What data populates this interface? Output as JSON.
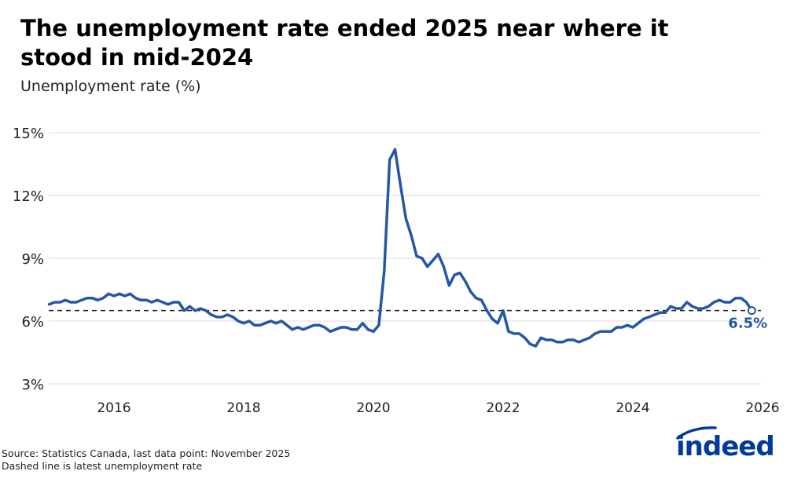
{
  "title": "The unemployment rate ended 2025 near where it stood in mid-2024",
  "subtitle": "Unemployment rate (%)",
  "source": "Source: Statistics Canada, last data point: November 2025",
  "note": "Dashed line is latest unemployment rate",
  "logo_text": "indeed",
  "colors": {
    "line": "#2557a7",
    "grid": "#dddddd",
    "reference": "#222222",
    "logo": "#003a9b"
  },
  "chart_data": {
    "type": "line",
    "title": "The unemployment rate ended 2025 near where it stood in mid-2024",
    "ylabel": "Unemployment rate (%)",
    "xlabel": "",
    "start": "2015-01",
    "frequency": "monthly",
    "end": "2025-11",
    "ylim": [
      3,
      15
    ],
    "yticks": [
      3,
      6,
      9,
      12,
      15
    ],
    "ytick_labels": [
      "3%",
      "6%",
      "9%",
      "12%",
      "15%"
    ],
    "xticks": [
      2016,
      2018,
      2020,
      2022,
      2024,
      2026
    ],
    "xtick_labels": [
      "2016",
      "2018",
      "2020",
      "2022",
      "2024",
      "2026"
    ],
    "grid": "horizontal",
    "reference_line": {
      "value": 6.5,
      "style": "dashed"
    },
    "end_label": "6.5%",
    "values": [
      6.8,
      6.9,
      6.9,
      7.0,
      6.9,
      6.9,
      7.0,
      7.1,
      7.1,
      7.0,
      7.1,
      7.3,
      7.2,
      7.3,
      7.2,
      7.3,
      7.1,
      7.0,
      7.0,
      6.9,
      7.0,
      6.9,
      6.8,
      6.9,
      6.9,
      6.5,
      6.7,
      6.5,
      6.6,
      6.5,
      6.3,
      6.2,
      6.2,
      6.3,
      6.2,
      6.0,
      5.9,
      6.0,
      5.8,
      5.8,
      5.9,
      6.0,
      5.9,
      6.0,
      5.8,
      5.6,
      5.7,
      5.6,
      5.7,
      5.8,
      5.8,
      5.7,
      5.5,
      5.6,
      5.7,
      5.7,
      5.6,
      5.6,
      5.9,
      5.6,
      5.5,
      5.8,
      8.4,
      13.7,
      14.2,
      12.5,
      10.9,
      10.1,
      9.1,
      9.0,
      8.6,
      8.9,
      9.2,
      8.6,
      7.7,
      8.2,
      8.3,
      7.9,
      7.4,
      7.1,
      7.0,
      6.5,
      6.1,
      5.9,
      6.5,
      5.5,
      5.4,
      5.4,
      5.2,
      4.9,
      4.8,
      5.2,
      5.1,
      5.1,
      5.0,
      5.0,
      5.1,
      5.1,
      5.0,
      5.1,
      5.2,
      5.4,
      5.5,
      5.5,
      5.5,
      5.7,
      5.7,
      5.8,
      5.7,
      5.9,
      6.1,
      6.2,
      6.3,
      6.4,
      6.4,
      6.7,
      6.6,
      6.6,
      6.9,
      6.7,
      6.6,
      6.6,
      6.7,
      6.9,
      7.0,
      6.9,
      6.9,
      7.1,
      7.1,
      6.9,
      6.5
    ]
  }
}
